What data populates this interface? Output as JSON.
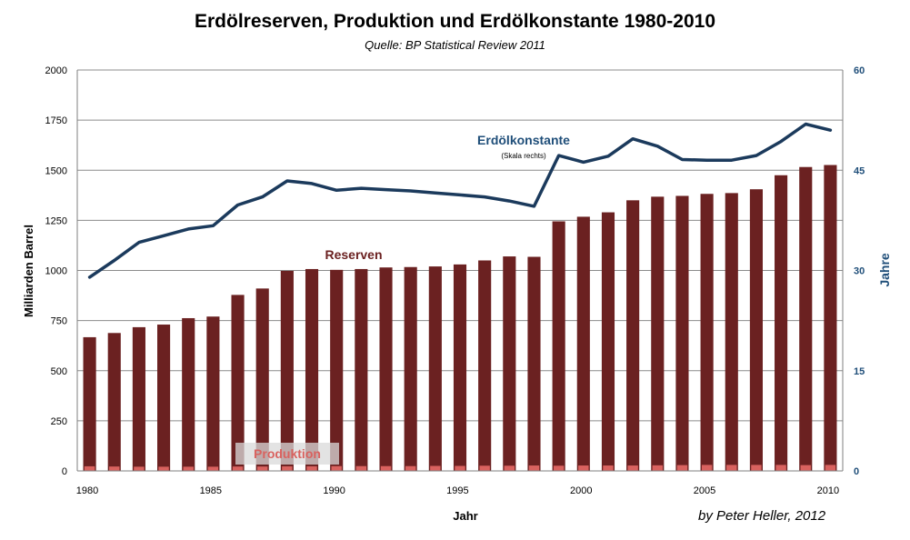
{
  "title": "Erdölreserven, Produktion und Erdölkonstante 1980-2010",
  "subtitle": "Quelle: BP Statistical Review 2011",
  "credit": "by Peter Heller, 2012",
  "colors": {
    "reserves": "#6b2121",
    "production": "#d9625f",
    "constant_line": "#1b3a5c",
    "right_axis": "#1f4e79",
    "grid": "#8c8c8c"
  },
  "chart_data": {
    "type": "bar",
    "title": "Erdölreserven, Produktion und Erdölkonstante 1980-2010",
    "subtitle": "Quelle: BP Statistical Review 2011",
    "xlabel": "Jahr",
    "ylabel": "Milliarden Barrel",
    "y2label": "Jahre",
    "ylim": [
      0,
      2000
    ],
    "y2lim": [
      0,
      60
    ],
    "yticks": [
      "0",
      "250",
      "500",
      "750",
      "1000",
      "1250",
      "1500",
      "1750",
      "2000"
    ],
    "y2ticks": [
      "0",
      "15",
      "30",
      "45",
      "60"
    ],
    "xtick_labels": [
      "1980",
      "1985",
      "1990",
      "1995",
      "2000",
      "2005",
      "2010"
    ],
    "grid": true,
    "x": [
      1980,
      1981,
      1982,
      1983,
      1984,
      1985,
      1986,
      1987,
      1988,
      1989,
      1990,
      1991,
      1992,
      1993,
      1994,
      1995,
      1996,
      1997,
      1998,
      1999,
      2000,
      2001,
      2002,
      2003,
      2004,
      2005,
      2006,
      2007,
      2008,
      2009,
      2010
    ],
    "series": [
      {
        "name": "Reserven",
        "type": "bar",
        "axis": "left",
        "values": [
          667,
          688,
          717,
          730,
          762,
          770,
          878,
          910,
          998,
          1007,
          1003,
          1007,
          1015,
          1017,
          1020,
          1030,
          1050,
          1070,
          1068,
          1245,
          1268,
          1290,
          1350,
          1368,
          1372,
          1382,
          1386,
          1405,
          1475,
          1516,
          1526
        ]
      },
      {
        "name": "Produktion",
        "type": "bar",
        "axis": "left",
        "values": [
          23,
          22,
          21,
          21,
          21,
          21,
          22,
          22,
          23,
          23,
          24,
          24,
          24,
          24,
          25,
          25,
          26,
          26,
          27,
          26,
          27,
          27,
          27,
          28,
          29,
          30,
          30,
          30,
          30,
          29,
          30
        ]
      },
      {
        "name": "Erdölkonstante",
        "name_note": "(Skala rechts)",
        "type": "line",
        "axis": "right",
        "values": [
          29.0,
          31.5,
          34.2,
          35.2,
          36.2,
          36.7,
          39.8,
          41.0,
          43.4,
          43.0,
          42.0,
          42.3,
          42.1,
          41.9,
          41.6,
          41.3,
          41.0,
          40.4,
          39.6,
          47.2,
          46.2,
          47.1,
          49.7,
          48.6,
          46.6,
          46.5,
          46.5,
          47.2,
          49.3,
          51.9,
          51.0
        ]
      }
    ],
    "annotations": {
      "reserves_label": "Reserven",
      "production_label": "Produktion",
      "constant_label": "Erdölkonstante",
      "constant_note": "(Skala rechts)"
    }
  }
}
